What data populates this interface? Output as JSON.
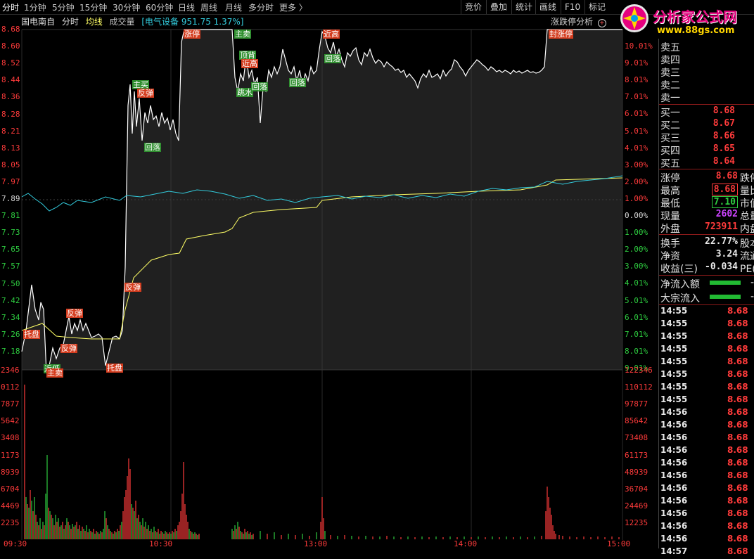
{
  "toolbar": {
    "tabs": [
      "分时",
      "1分钟",
      "5分钟",
      "15分钟",
      "30分钟",
      "60分钟",
      "日线",
      "周线",
      "月线",
      "多分时",
      "更多 〉"
    ],
    "right": [
      "竞价",
      "叠加",
      "统计",
      "画线",
      "F10",
      "标记"
    ]
  },
  "header": {
    "stock_name": "国电南自",
    "mode": "分时",
    "avg_label": "均线",
    "vol_label": "成交量",
    "sector": "[电气设备 951.75 1.37%]",
    "analysis": "涨跌停分析"
  },
  "watermark": {
    "title": "分析家公式网",
    "url": "www.88gs.com"
  },
  "price_axis_left": [
    "8.68",
    "8.60",
    "8.52",
    "8.44",
    "8.36",
    "8.28",
    "8.21",
    "8.13",
    "8.05",
    "7.97",
    "7.89",
    "7.81",
    "7.73",
    "7.65",
    "7.57",
    "7.50",
    "7.42",
    "7.34",
    "7.26",
    "7.18"
  ],
  "pct_axis_right": [
    "10.01%",
    "9.01%",
    "8.01%",
    "7.01%",
    "6.01%",
    "5.01%",
    "4.01%",
    "3.00%",
    "2.00%",
    "1.00%",
    "0.00%",
    "1.00%",
    "2.00%",
    "3.00%",
    "4.01%",
    "5.01%",
    "6.01%",
    "7.01%",
    "8.01%",
    "9.01%"
  ],
  "vol_axis_left": [
    "2346",
    "0112",
    "7877",
    "5642",
    "3408",
    "1173",
    "8939",
    "6704",
    "4469",
    "2235"
  ],
  "vol_axis_right": [
    "122346",
    "110112",
    "97877",
    "85642",
    "73408",
    "61173",
    "48939",
    "36704",
    "24469",
    "12235"
  ],
  "time_axis": [
    "09:30",
    "10:30",
    "13:00",
    "14:00",
    "15:00"
  ],
  "annotations": [
    {
      "text": "托盘",
      "c": "r"
    },
    {
      "text": "近低",
      "c": "g"
    },
    {
      "text": "主卖",
      "c": "r"
    },
    {
      "text": "反弹",
      "c": "r"
    },
    {
      "text": "反弹",
      "c": "r"
    },
    {
      "text": "托盘",
      "c": "r"
    },
    {
      "text": "反弹",
      "c": "r"
    },
    {
      "text": "主买",
      "c": "g"
    },
    {
      "text": "反弹",
      "c": "r"
    },
    {
      "text": "回落",
      "c": "g"
    },
    {
      "text": "涨停",
      "c": "r"
    },
    {
      "text": "主卖",
      "c": "g"
    },
    {
      "text": "顶背",
      "c": "g"
    },
    {
      "text": "近高",
      "c": "r"
    },
    {
      "text": "跳水",
      "c": "g"
    },
    {
      "text": "回落",
      "c": "g"
    },
    {
      "text": "回落",
      "c": "g"
    },
    {
      "text": "近高",
      "c": "r"
    },
    {
      "text": "回落",
      "c": "g"
    },
    {
      "text": "封涨停",
      "c": "r"
    }
  ],
  "order_book": {
    "sell": [
      {
        "label": "卖五"
      },
      {
        "label": "卖四"
      },
      {
        "label": "卖三"
      },
      {
        "label": "卖二"
      },
      {
        "label": "卖一"
      }
    ],
    "buy": [
      {
        "label": "买一",
        "price": "8.68"
      },
      {
        "label": "买二",
        "price": "8.67"
      },
      {
        "label": "买三",
        "price": "8.66"
      },
      {
        "label": "买四",
        "price": "8.65"
      },
      {
        "label": "买五",
        "price": "8.64"
      }
    ]
  },
  "stats": [
    {
      "label": "涨停",
      "value": "8.68",
      "ext": "跌停"
    },
    {
      "label": "最高",
      "value": "8.68",
      "ext": "量比"
    },
    {
      "label": "最低",
      "value": "7.10",
      "ext": "市值"
    },
    {
      "label": "现量",
      "value": "2602",
      "ext": "总量"
    },
    {
      "label": "外盘",
      "value": "723911",
      "ext": "内盘"
    },
    {
      "label": "换手",
      "value": "22.77%",
      "ext": "股本"
    },
    {
      "label": "净资",
      "value": "3.24",
      "ext": "流通"
    },
    {
      "label": "收益(三)",
      "value": "-0.034",
      "ext": "PE(动)"
    }
  ],
  "flow": [
    {
      "label": "净流入额",
      "value": "-"
    },
    {
      "label": "大宗流入",
      "value": "-"
    }
  ],
  "ticks": [
    {
      "t": "14:55",
      "p": "8.68"
    },
    {
      "t": "14:55",
      "p": "8.68"
    },
    {
      "t": "14:55",
      "p": "8.68"
    },
    {
      "t": "14:55",
      "p": "8.68"
    },
    {
      "t": "14:55",
      "p": "8.68"
    },
    {
      "t": "14:55",
      "p": "8.68"
    },
    {
      "t": "14:55",
      "p": "8.68"
    },
    {
      "t": "14:55",
      "p": "8.68"
    },
    {
      "t": "14:56",
      "p": "8.68"
    },
    {
      "t": "14:56",
      "p": "8.68"
    },
    {
      "t": "14:56",
      "p": "8.68"
    },
    {
      "t": "14:56",
      "p": "8.68"
    },
    {
      "t": "14:56",
      "p": "8.68"
    },
    {
      "t": "14:56",
      "p": "8.68"
    },
    {
      "t": "14:56",
      "p": "8.68"
    },
    {
      "t": "14:56",
      "p": "8.68"
    },
    {
      "t": "14:56",
      "p": "8.68"
    },
    {
      "t": "14:56",
      "p": "8.68"
    },
    {
      "t": "14:56",
      "p": "8.68"
    },
    {
      "t": "14:57",
      "p": "8.68"
    }
  ],
  "colors": {
    "price_line": "#ffffff",
    "avg_line": "#ffff66",
    "index_line": "#33ccdd",
    "up": "#ff3b3b",
    "down": "#2ecc40",
    "fill": "#3a3a3a"
  }
}
